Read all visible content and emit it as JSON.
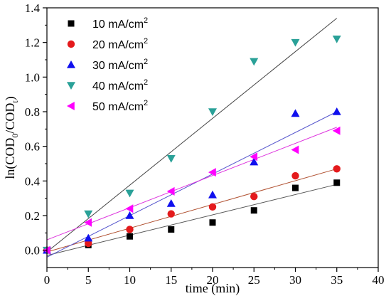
{
  "chart_data": {
    "type": "scatter",
    "title": "",
    "xlabel": "time (min)",
    "ylabel": "ln(COD0/CODt)",
    "ylabel_parts": {
      "pre": "ln(COD",
      "sub1": "0",
      "mid": "/COD",
      "sub2": "t",
      "post": ")"
    },
    "xlim": [
      0,
      40
    ],
    "ylim": [
      -0.1,
      1.4
    ],
    "x_ticks": [
      0,
      5,
      10,
      15,
      20,
      25,
      30,
      35,
      40
    ],
    "y_ticks": [
      0.0,
      0.2,
      0.4,
      0.6,
      0.8,
      1.0,
      1.2,
      1.4
    ],
    "y_tick_labels": [
      "0.0",
      "0.2",
      "0.4",
      "0.6",
      "0.8",
      "1.0",
      "1.2",
      "1.4"
    ],
    "x_tick_labels": [
      "0",
      "5",
      "10",
      "15",
      "20",
      "25",
      "30",
      "35",
      "40"
    ],
    "grid": false,
    "legend_position": "top-left",
    "x": [
      0,
      5,
      10,
      15,
      20,
      25,
      30,
      35
    ],
    "series": [
      {
        "name": "10 mA/cm2",
        "label_main": "10 mA/cm",
        "label_sup": "2",
        "marker": "square",
        "color": "#000000",
        "values": [
          0.0,
          0.03,
          0.08,
          0.12,
          0.16,
          0.23,
          0.36,
          0.39
        ],
        "fit": {
          "x": [
            0,
            35
          ],
          "y": [
            -0.03,
            0.38
          ],
          "color": "#555555"
        }
      },
      {
        "name": "20 mA/cm2",
        "label_main": "20 mA/cm",
        "label_sup": "2",
        "marker": "circle",
        "color": "#e41a1c",
        "values": [
          0.0,
          0.04,
          0.12,
          0.21,
          0.25,
          0.31,
          0.43,
          0.47
        ],
        "fit": {
          "x": [
            0,
            35
          ],
          "y": [
            -0.01,
            0.47
          ],
          "color": "#b05030"
        }
      },
      {
        "name": "30 mA/cm2",
        "label_main": "30 mA/cm",
        "label_sup": "2",
        "marker": "triangle-up",
        "color": "#1010ee",
        "values": [
          0.0,
          0.07,
          0.2,
          0.27,
          0.32,
          0.51,
          0.79,
          0.8
        ],
        "fit": {
          "x": [
            0,
            35
          ],
          "y": [
            -0.04,
            0.8
          ],
          "color": "#5555cc"
        }
      },
      {
        "name": "40 mA/cm2",
        "label_main": "40 mA/cm",
        "label_sup": "2",
        "marker": "triangle-down",
        "color": "#2aa198",
        "values": [
          0.0,
          0.21,
          0.33,
          0.53,
          0.8,
          1.09,
          1.2,
          1.22
        ],
        "fit": {
          "x": [
            0,
            35
          ],
          "y": [
            -0.01,
            1.34
          ],
          "color": "#444444"
        }
      },
      {
        "name": "50 mA/cm2",
        "label_main": "50 mA/cm",
        "label_sup": "2",
        "marker": "triangle-left",
        "color": "#ff00ff",
        "values": [
          0.0,
          0.16,
          0.24,
          0.34,
          0.45,
          0.54,
          0.58,
          0.69
        ],
        "fit": {
          "x": [
            0,
            35
          ],
          "y": [
            0.06,
            0.71
          ],
          "color": "#dd33dd"
        }
      }
    ]
  }
}
